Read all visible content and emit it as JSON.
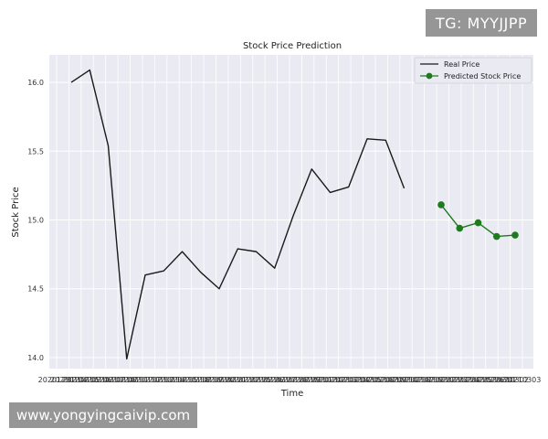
{
  "chart_data": {
    "type": "line",
    "title": "Stock Price Prediction",
    "xlabel": "Time",
    "ylabel": "Stock Price",
    "ylim": [
      13.92,
      16.2
    ],
    "yticks": [
      "14.0",
      "14.5",
      "15.0",
      "15.5",
      "16.0"
    ],
    "xticks": [
      "20201231",
      "20210104",
      "20210105",
      "20210106",
      "20210107",
      "20210108",
      "20210111",
      "20210112",
      "20210113",
      "20210114",
      "20210115",
      "20210118",
      "20210119",
      "20210120",
      "20210121",
      "20210122",
      "20210125",
      "20210126",
      "20210127",
      "20210128",
      "20210129",
      "20210201",
      "20210202",
      "20210203",
      "20210204",
      "20210205",
      "20210208",
      "20210209",
      "20210210",
      "20210218",
      "20210219",
      "20210222",
      "20210223",
      "20210224",
      "20210225",
      "20210226",
      "20210301",
      "20210302",
      "20210303"
    ],
    "grid": true,
    "legend": "top-right",
    "series": [
      {
        "name": "Real Price",
        "color": "#1a1a1a",
        "marker": "none",
        "x": [
          0,
          1,
          2,
          3,
          4,
          5,
          6,
          7,
          8,
          9,
          10,
          11,
          12,
          13,
          14,
          15,
          16,
          17,
          18,
          19
        ],
        "values": [
          16.0,
          16.09,
          15.54,
          13.99,
          14.6,
          14.63,
          14.77,
          14.62,
          14.5,
          14.79,
          14.77,
          14.65,
          15.03,
          15.37,
          15.2,
          15.24,
          15.59,
          15.58,
          15.23,
          null
        ]
      },
      {
        "name": "Predicted Stock Price",
        "color": "#1f7a1f",
        "marker": "circle",
        "x": [
          20,
          21,
          22,
          23,
          24
        ],
        "values": [
          15.11,
          14.94,
          14.98,
          14.88,
          14.89
        ]
      }
    ]
  },
  "watermarks": {
    "top": "TG: MYYJJPP",
    "bottom": "www.yongyingcaivip.com"
  }
}
